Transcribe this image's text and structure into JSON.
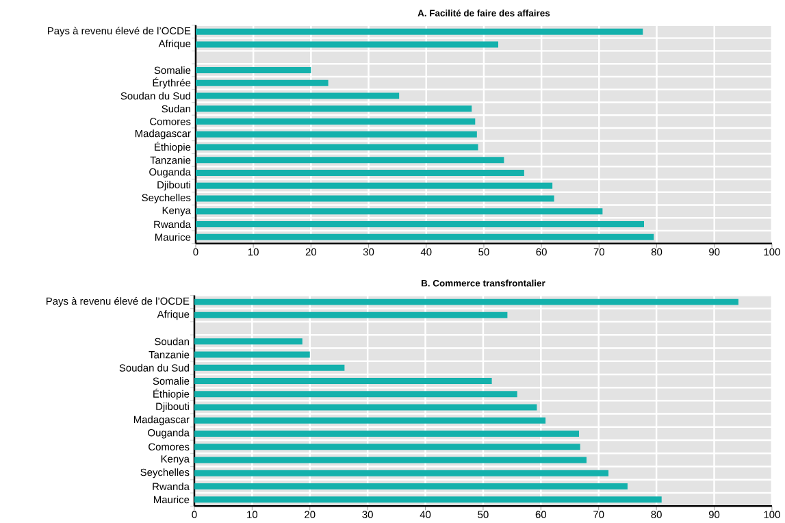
{
  "chart_data": [
    {
      "type": "bar",
      "orientation": "horizontal",
      "title": "A. Facilité de faire des affaires",
      "categories": [
        "Pays à revenu élevé de l’OCDE",
        "Afrique",
        null,
        "Somalie",
        "Érythrée",
        "Soudan du Sud",
        "Sudan",
        "Comores",
        "Madagascar",
        "Éthiopie",
        "Tanzanie",
        "Ouganda",
        "Djibouti",
        "Seychelles",
        "Kenya",
        "Rwanda",
        "Maurice"
      ],
      "values": [
        77.6,
        52.5,
        null,
        20.0,
        23.0,
        35.3,
        47.9,
        48.5,
        48.8,
        49.0,
        53.5,
        57.0,
        61.9,
        62.2,
        70.6,
        77.8,
        79.5
      ],
      "color": "#14b1ac",
      "xlim": [
        0,
        100
      ],
      "xticks": [
        0,
        10,
        20,
        30,
        40,
        50,
        60,
        70,
        80,
        90,
        100
      ],
      "grid": true
    },
    {
      "type": "bar",
      "orientation": "horizontal",
      "title": "B. Commerce transfrontalier",
      "categories": [
        "Pays à revenu élevé de l’OCDE",
        "Afrique",
        null,
        "Soudan",
        "Tanzanie",
        "Soudan du Sud",
        "Somalie",
        "Éthiopie",
        "Djibouti",
        "Madagascar",
        "Ouganda",
        "Comores",
        "Kenya",
        "Seychelles",
        "Rwanda",
        "Maurice"
      ],
      "values": [
        94.2,
        54.2,
        null,
        18.7,
        20.0,
        26.0,
        51.5,
        55.9,
        59.3,
        60.8,
        66.6,
        66.8,
        67.9,
        71.7,
        75.0,
        80.9
      ],
      "color": "#14b1ac",
      "xlim": [
        0,
        100
      ],
      "xticks": [
        0,
        10,
        20,
        30,
        40,
        50,
        60,
        70,
        80,
        90,
        100
      ],
      "grid": true
    }
  ]
}
